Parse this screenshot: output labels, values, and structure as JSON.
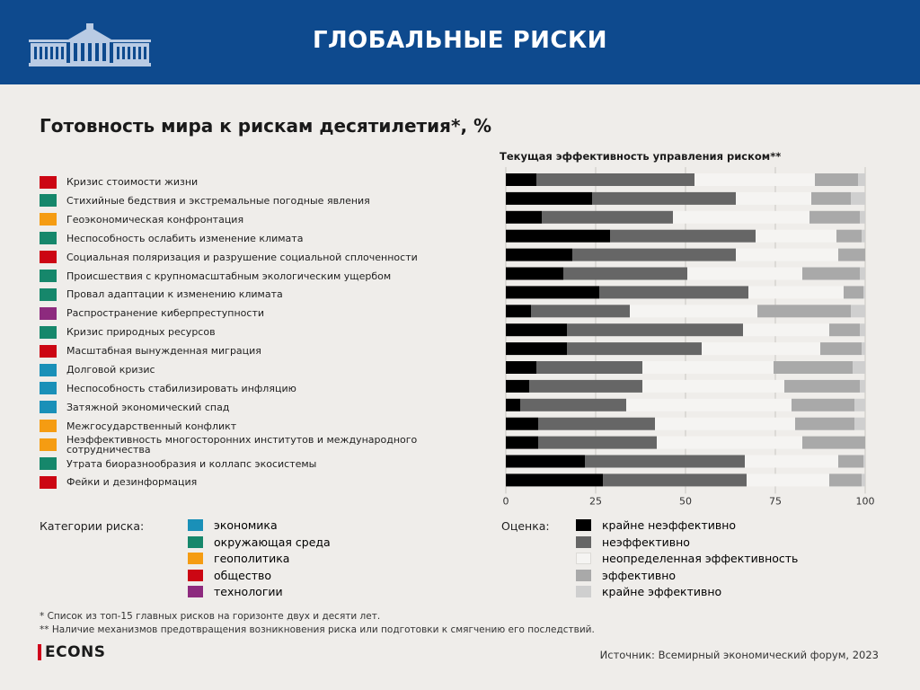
{
  "header": {
    "title": "ГЛОБАЛЬНЫЕ РИСКИ"
  },
  "chart_data": {
    "type": "bar",
    "orientation": "horizontal",
    "stacked": true,
    "title": "Готовность мира к рискам десятилетия*, %",
    "xlabel": "Текущая эффективность управления риском**",
    "ylabel": "",
    "xlim": [
      0,
      100
    ],
    "xticks": [
      0,
      25,
      50,
      75,
      100
    ],
    "grid": true,
    "categories": [
      "Кризис стоимости жизни",
      "Стихийные бедствия и экстремальные погодные явления",
      "Геоэкономическая конфронтация",
      "Неспособность ослабить изменение климата",
      "Социальная поляризация и разрушение социальной сплоченности",
      "Происшествия с крупномасштабным экологическим ущербом",
      "Провал адаптации к изменению климата",
      "Распространение киберпреступности",
      "Кризис природных ресурсов",
      "Масштабная вынужденная миграция",
      "Долговой кризис",
      "Неспособность стабилизировать инфляцию",
      "Затяжной экономический спад",
      "Межгосударственный конфликт",
      "Неэффективность многосторонних институтов и международного сотрудничества",
      "Утрата биоразнообразия и коллапс экосистемы",
      "Фейки и дезинформация"
    ],
    "category_group": [
      "общество",
      "окружающая среда",
      "геополитика",
      "окружающая среда",
      "общество",
      "окружающая среда",
      "окружающая среда",
      "технологии",
      "окружающая среда",
      "общество",
      "экономика",
      "экономика",
      "экономика",
      "геополитика",
      "геополитика",
      "окружающая среда",
      "общество"
    ],
    "series": [
      {
        "name": "крайне неэффективно",
        "color": "#000000",
        "values": [
          8.5,
          24,
          10,
          29,
          18.5,
          16,
          26,
          7,
          17,
          17,
          8.5,
          6.5,
          4,
          9,
          9,
          22,
          27
        ]
      },
      {
        "name": "неэффективно",
        "color": "#666666",
        "values": [
          44,
          40,
          36.5,
          40.5,
          45.5,
          34.5,
          41.5,
          27.5,
          49,
          37.5,
          29.5,
          31.5,
          29.5,
          32.5,
          33,
          44.5,
          40
        ]
      },
      {
        "name": "неопределенная эффективность",
        "color": "#f5f4f2",
        "values": [
          33.5,
          21,
          38,
          22.5,
          28.5,
          32,
          26.5,
          35.5,
          24,
          33,
          36.5,
          39.5,
          46,
          39,
          40.5,
          26,
          23
        ]
      },
      {
        "name": "эффективно",
        "color": "#a9a9a9",
        "values": [
          12,
          11,
          14,
          7,
          7.5,
          16,
          5.5,
          26,
          8.5,
          11.5,
          22,
          21,
          17.5,
          16.5,
          17.5,
          7,
          9
        ]
      },
      {
        "name": "крайне эффективно",
        "color": "#cfcfcf",
        "values": [
          2,
          4,
          1.5,
          1,
          0,
          1.5,
          0.5,
          4,
          1.5,
          1,
          3.5,
          1.5,
          3,
          3,
          0,
          0.5,
          1
        ]
      }
    ]
  },
  "categories_legend": {
    "label": "Категории риска:",
    "items": [
      {
        "name": "экономика",
        "color": "#1a90b8"
      },
      {
        "name": "окружающая среда",
        "color": "#16876b"
      },
      {
        "name": "геополитика",
        "color": "#f59c12"
      },
      {
        "name": "общество",
        "color": "#cc0613"
      },
      {
        "name": "технологии",
        "color": "#8d2a7e"
      }
    ]
  },
  "rating_legend": {
    "label": "Оценка:"
  },
  "notes": {
    "note1": "* Список из топ-15 главных рисков на горизонте двух и десяти лет.",
    "note2": "** Наличие механизмов предотвращения возникновения риска или подготовки к смягчению его последствий."
  },
  "footer": {
    "brand": "ECONS",
    "source": "Источник: Всемирный экономический форум, 2023"
  }
}
